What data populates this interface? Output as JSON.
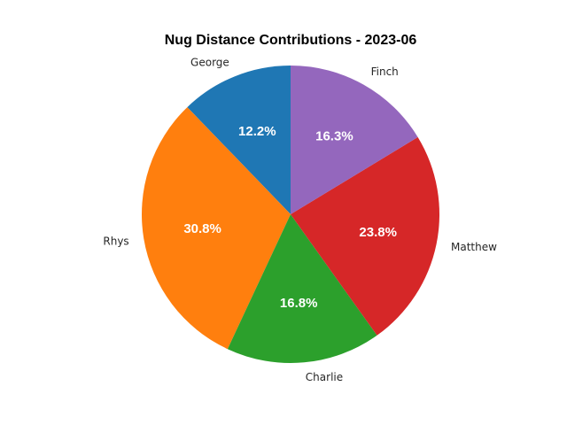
{
  "chart_data": {
    "type": "pie",
    "title": "Nug Distance Contributions - 2023-06",
    "start_angle_deg": 90,
    "direction": "counterclockwise",
    "slices": [
      {
        "name": "George",
        "value": 12.2,
        "label": "12.2%",
        "color": "#1f77b4"
      },
      {
        "name": "Rhys",
        "value": 30.8,
        "label": "30.8%",
        "color": "#ff7f0e"
      },
      {
        "name": "Charlie",
        "value": 16.8,
        "label": "16.8%",
        "color": "#2ca02c"
      },
      {
        "name": "Matthew",
        "value": 23.8,
        "label": "23.8%",
        "color": "#d62728"
      },
      {
        "name": "Finch",
        "value": 16.3,
        "label": "16.3%",
        "color": "#9467bd"
      }
    ]
  }
}
